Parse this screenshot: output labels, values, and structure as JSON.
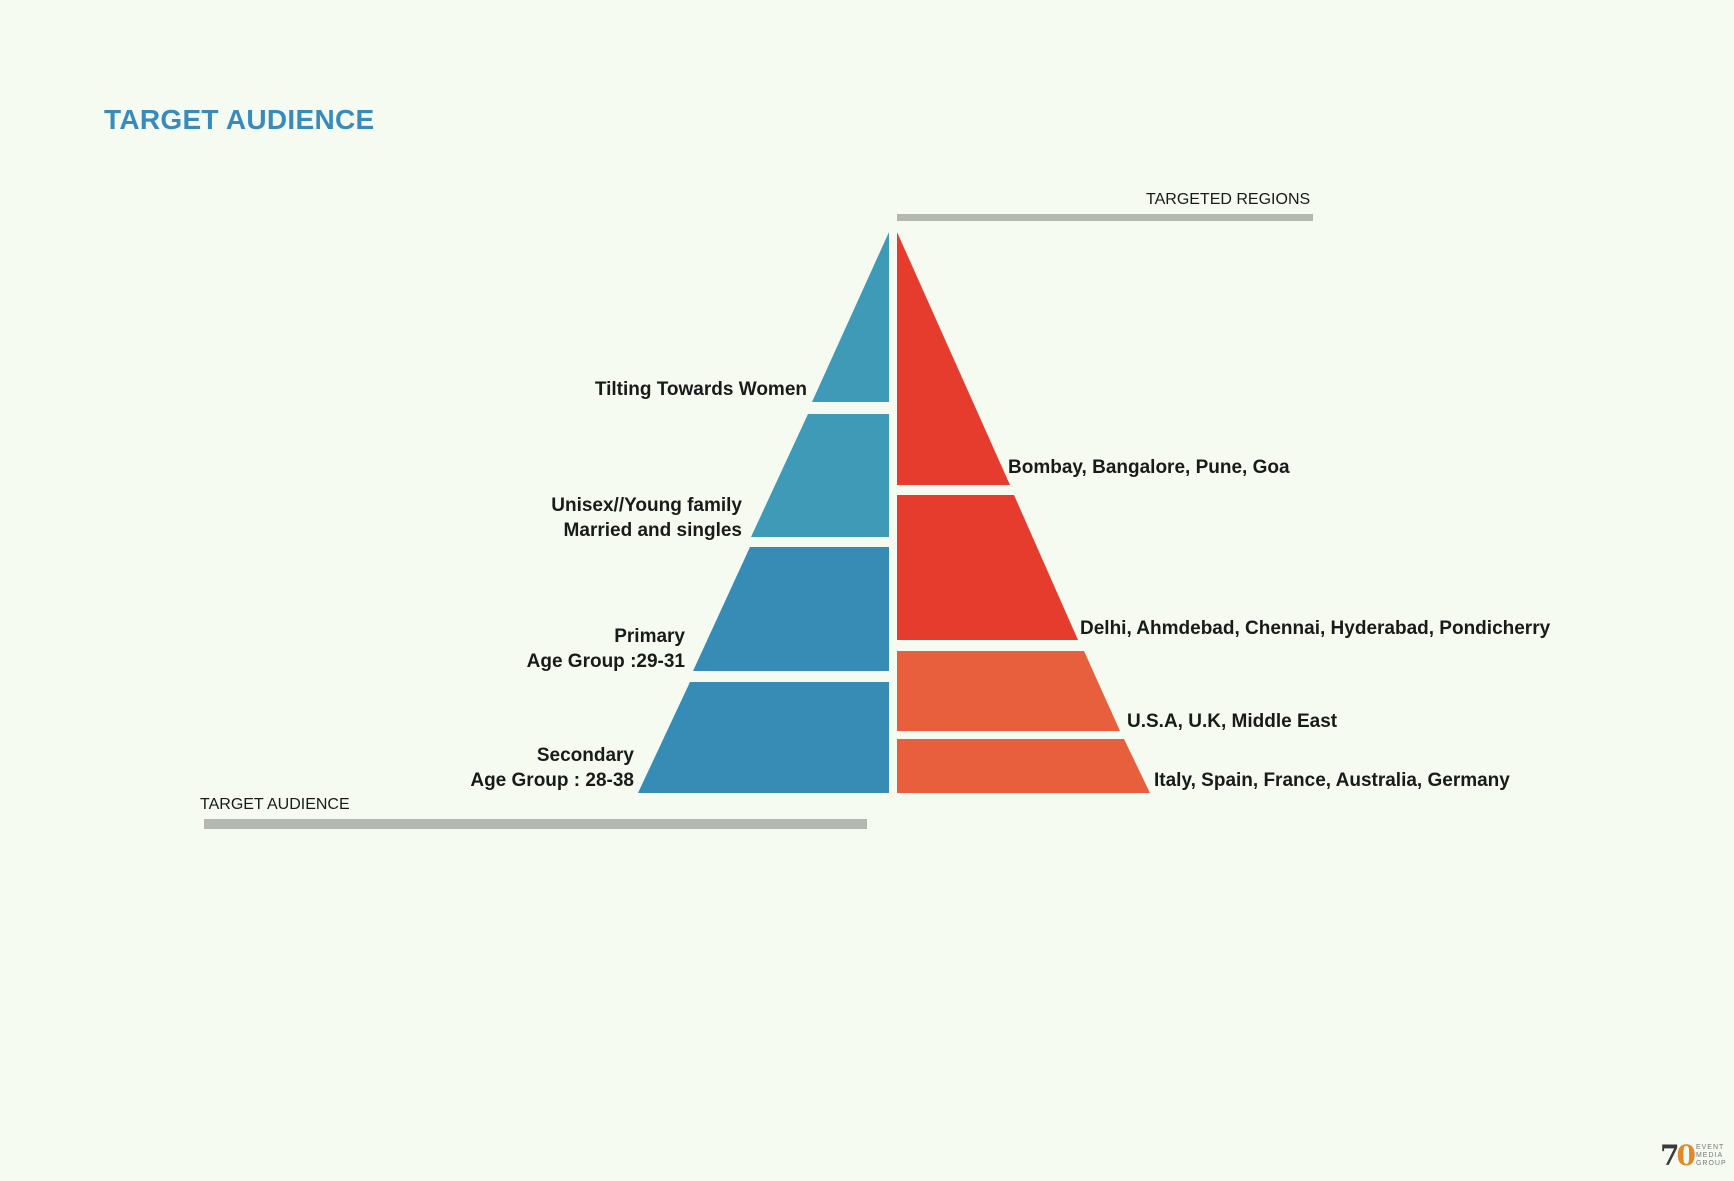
{
  "page": {
    "title": "TARGET AUDIENCE"
  },
  "audience": {
    "axis_label": "TARGET AUDIENCE",
    "tiers": [
      {
        "lines": [
          "Tilting Towards Women"
        ],
        "color": "#3e9ab7"
      },
      {
        "lines": [
          "Unisex//Young family",
          "Married and singles"
        ],
        "color": "#3e9ab7"
      },
      {
        "lines": [
          "Primary",
          "Age Group :29-31"
        ],
        "color": "#378cb6"
      },
      {
        "lines": [
          "Secondary",
          "Age Group : 28-38"
        ],
        "color": "#378cb6"
      }
    ]
  },
  "regions": {
    "axis_label": "TARGETED REGIONS",
    "tiers": [
      {
        "text": "Bombay, Bangalore, Pune, Goa",
        "color": "#e63c2e"
      },
      {
        "text": "Delhi, Ahmdebad, Chennai, Hyderabad, Pondicherry",
        "color": "#e63c2e"
      },
      {
        "text": "U.S.A, U.K, Middle East",
        "color": "#e75f3c"
      },
      {
        "text": "Italy, Spain, France, Australia, Germany",
        "color": "#e75f3c"
      }
    ]
  },
  "colors": {
    "axis_bar": "#b3b8b1",
    "title": "#3a8bbd"
  },
  "logo": {
    "number": "70",
    "words": [
      "EVENT",
      "MEDIA",
      "GROUP"
    ]
  }
}
